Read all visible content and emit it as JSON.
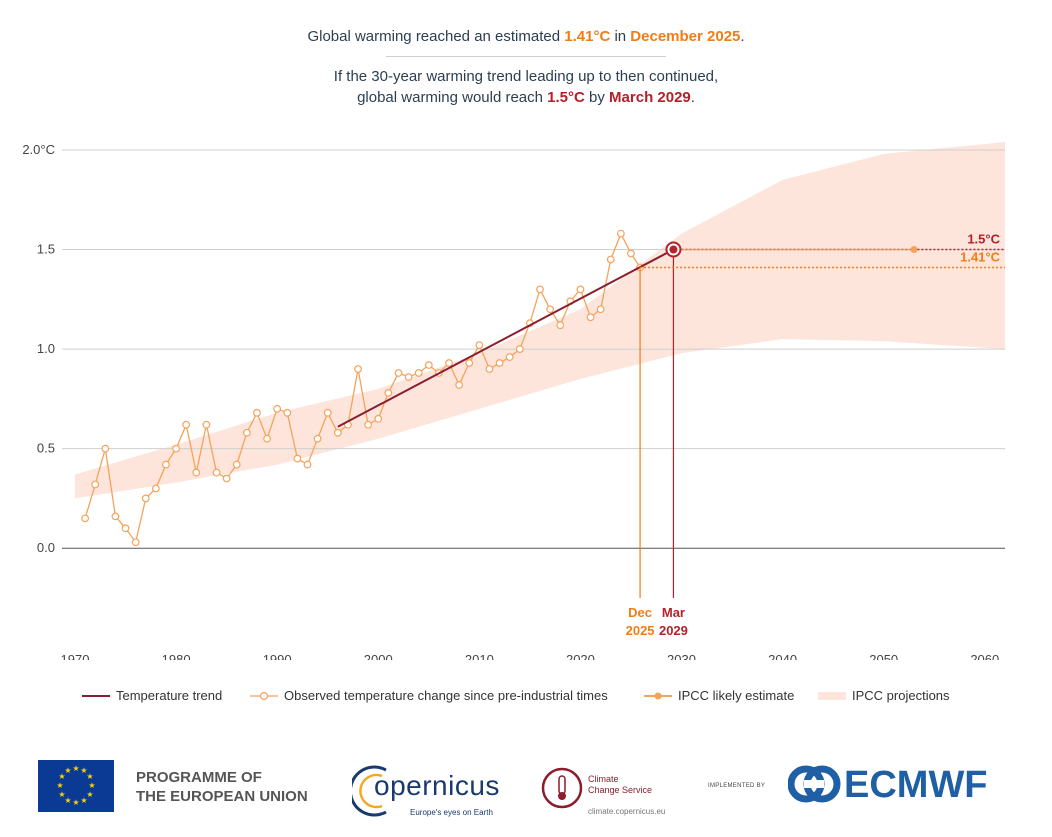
{
  "header": {
    "line1_pre": "Global warming reached an estimated ",
    "line1_value": "1.41°C",
    "line1_mid": " in ",
    "line1_date": "December 2025",
    "line1_post": ".",
    "line2": "If the 30-year warming trend leading up to then continued,",
    "line3_pre": "global warming would reach ",
    "line3_value": "1.5°C",
    "line3_mid": " by ",
    "line3_date": "March 2029",
    "line3_post": "."
  },
  "chart_data": {
    "type": "line",
    "xlim": [
      1970,
      2062
    ],
    "ylim": [
      -0.25,
      2.05
    ],
    "y_ticks": [
      {
        "value": 0.0,
        "label": "0.0"
      },
      {
        "value": 0.5,
        "label": "0.5"
      },
      {
        "value": 1.0,
        "label": "1.0"
      },
      {
        "value": 1.5,
        "label": "1.5"
      },
      {
        "value": 2.0,
        "label": "2.0°C"
      }
    ],
    "x_ticks": [
      1970,
      1980,
      1990,
      2000,
      2010,
      2020,
      2030,
      2040,
      2050,
      2060
    ],
    "trend": {
      "name": "Temperature trend",
      "x": [
        1996,
        2029.2
      ],
      "y": [
        0.61,
        1.5
      ],
      "color": "#8b1d2c"
    },
    "observed": {
      "name": "Observed temperature change since pre-industrial times",
      "color": "#f5a25a",
      "x": [
        1971,
        1972,
        1973,
        1974,
        1975,
        1976,
        1977,
        1978,
        1979,
        1980,
        1981,
        1982,
        1983,
        1984,
        1985,
        1986,
        1987,
        1988,
        1989,
        1990,
        1991,
        1992,
        1993,
        1994,
        1995,
        1996,
        1997,
        1998,
        1999,
        2000,
        2001,
        2002,
        2003,
        2004,
        2005,
        2006,
        2007,
        2008,
        2009,
        2010,
        2011,
        2012,
        2013,
        2014,
        2015,
        2016,
        2017,
        2018,
        2019,
        2020,
        2021,
        2022,
        2023,
        2024,
        2025,
        2025.9
      ],
      "y": [
        0.15,
        0.32,
        0.5,
        0.16,
        0.1,
        0.03,
        0.25,
        0.3,
        0.42,
        0.5,
        0.62,
        0.38,
        0.62,
        0.38,
        0.35,
        0.42,
        0.58,
        0.68,
        0.55,
        0.7,
        0.68,
        0.45,
        0.42,
        0.55,
        0.68,
        0.58,
        0.62,
        0.9,
        0.62,
        0.65,
        0.78,
        0.88,
        0.86,
        0.88,
        0.92,
        0.88,
        0.93,
        0.82,
        0.93,
        1.02,
        0.9,
        0.93,
        0.96,
        1.0,
        1.13,
        1.3,
        1.2,
        1.12,
        1.24,
        1.3,
        1.16,
        1.2,
        1.45,
        1.58,
        1.48,
        1.41
      ]
    },
    "ipcc_likely": {
      "name": "IPCC likely estimate",
      "x": [
        2029.2,
        2053
      ],
      "y": [
        1.5,
        1.5
      ],
      "color": "#f5a25a"
    },
    "ipcc_projection": {
      "name": "IPCC projections",
      "color": "#fde5dc",
      "x": [
        1970,
        1980,
        1990,
        2000,
        2010,
        2020,
        2030,
        2040,
        2050,
        2062
      ],
      "lower": [
        0.25,
        0.33,
        0.42,
        0.55,
        0.7,
        0.85,
        0.98,
        1.05,
        1.04,
        1.0
      ],
      "upper": [
        0.37,
        0.52,
        0.68,
        0.8,
        0.98,
        1.2,
        1.58,
        1.85,
        1.98,
        2.04
      ]
    },
    "markers": [
      {
        "x": 2025.9,
        "y": 1.41,
        "label_top": "Dec",
        "label_bottom": "2025",
        "value_label": "1.41°C",
        "color": "#f07d16"
      },
      {
        "x": 2029.2,
        "y": 1.5,
        "label_top": "Mar",
        "label_bottom": "2029",
        "value_label": "1.5°C",
        "color": "#b5202a"
      }
    ]
  },
  "legend": {
    "trend": "Temperature trend",
    "observed": "Observed temperature change since pre-industrial times",
    "likely": "IPCC likely estimate",
    "projections": "IPCC projections"
  },
  "footer": {
    "eu_line1": "PROGRAMME OF",
    "eu_line2": "THE EUROPEAN UNION",
    "copernicus": "opernicus",
    "copernicus_tag": "Europe's eyes on Earth",
    "c3s_line1": "Climate",
    "c3s_line2": "Change Service",
    "c3s_url": "climate.copernicus.eu",
    "implemented_by": "IMPLEMENTED BY",
    "ecmwf": "ECMWF"
  }
}
